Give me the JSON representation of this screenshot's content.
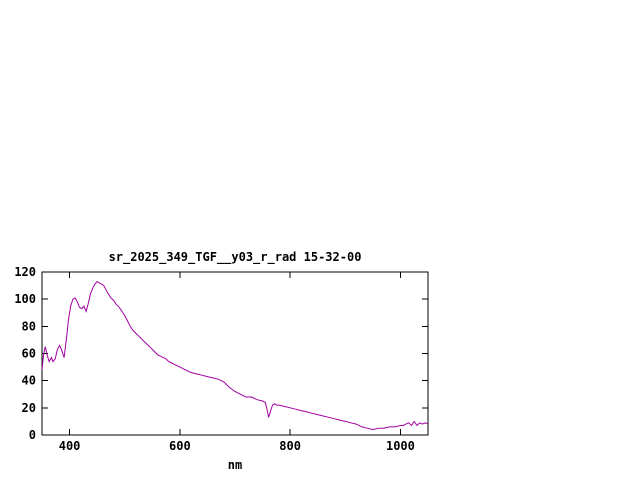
{
  "chart_data": {
    "type": "line",
    "title": "sr_2025_349_TGF__y03_r_rad 15-32-00",
    "xlabel": "nm",
    "ylabel": "",
    "xlim": [
      350,
      1050
    ],
    "ylim": [
      0,
      120
    ],
    "xticks": [
      400,
      600,
      800,
      1000
    ],
    "yticks": [
      0,
      20,
      40,
      60,
      80,
      100,
      120
    ],
    "grid": false,
    "legend": "none",
    "line_color": "#a000a0",
    "border_color": "#000000",
    "x": [
      350,
      353,
      356,
      360,
      363,
      367,
      370,
      374,
      378,
      382,
      386,
      390,
      394,
      398,
      402,
      406,
      410,
      414,
      418,
      422,
      426,
      430,
      434,
      438,
      442,
      446,
      450,
      454,
      458,
      462,
      466,
      470,
      475,
      480,
      485,
      490,
      495,
      500,
      505,
      510,
      515,
      520,
      525,
      530,
      535,
      540,
      545,
      550,
      555,
      560,
      565,
      570,
      575,
      580,
      585,
      590,
      595,
      600,
      610,
      620,
      630,
      640,
      650,
      660,
      670,
      680,
      690,
      700,
      710,
      720,
      730,
      740,
      750,
      755,
      758,
      761,
      764,
      768,
      772,
      776,
      780,
      790,
      800,
      810,
      820,
      830,
      840,
      850,
      860,
      870,
      880,
      890,
      900,
      910,
      920,
      930,
      940,
      950,
      960,
      970,
      980,
      990,
      1000,
      1005,
      1010,
      1015,
      1020,
      1025,
      1030,
      1035,
      1040,
      1045,
      1050
    ],
    "y": [
      48,
      60,
      65,
      58,
      54,
      57,
      54,
      56,
      63,
      66,
      62,
      57,
      70,
      85,
      95,
      100,
      101,
      98,
      94,
      93,
      95,
      91,
      97,
      104,
      108,
      111,
      113,
      112,
      111,
      110,
      107,
      104,
      101,
      99,
      96,
      94,
      91,
      88,
      84,
      80,
      77,
      75,
      73,
      71,
      69,
      67,
      65,
      63,
      61,
      59,
      58,
      57,
      56,
      54,
      53,
      52,
      51,
      50,
      48,
      46,
      45,
      44,
      43,
      42,
      41,
      39,
      35,
      32,
      30,
      28,
      28,
      26,
      25,
      24,
      19,
      13,
      17,
      22,
      23,
      22,
      22,
      21,
      20,
      19,
      18,
      17,
      16,
      15,
      14,
      13,
      12,
      11,
      10,
      9,
      8,
      6,
      5,
      4,
      5,
      5,
      6,
      6,
      7,
      7,
      8,
      9,
      7,
      10,
      7,
      9,
      8,
      9,
      8
    ]
  }
}
